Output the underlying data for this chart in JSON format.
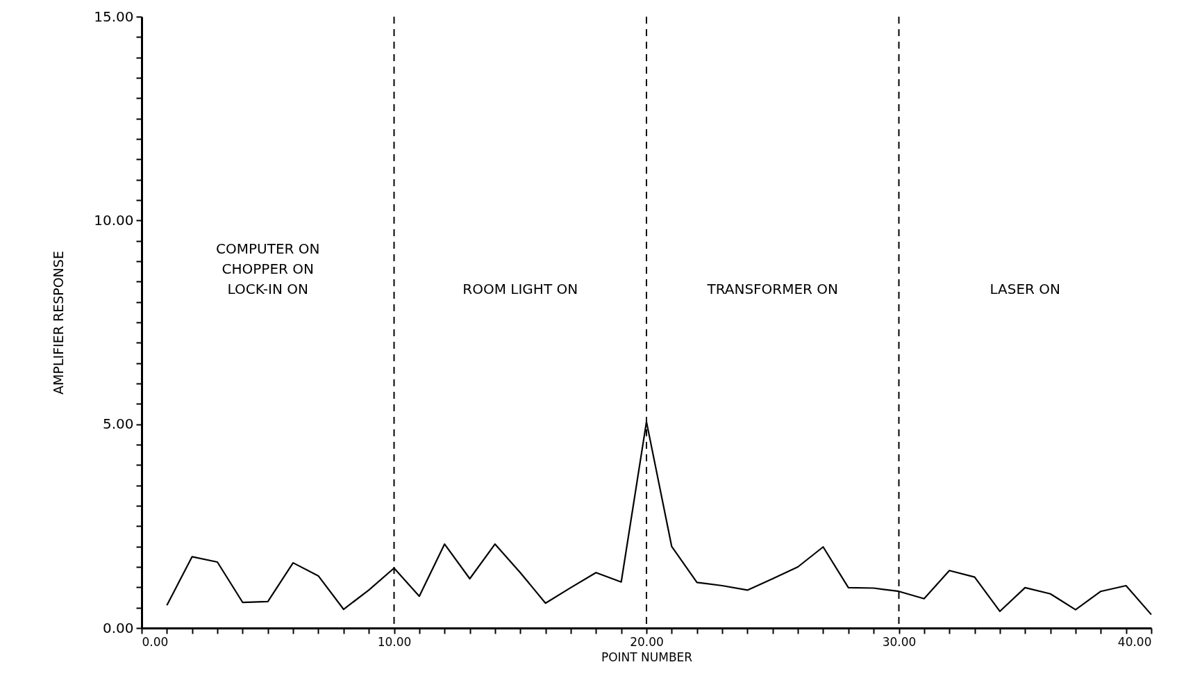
{
  "chart_data": {
    "type": "line",
    "xlabel": "POINT NUMBER",
    "ylabel": "AMPLIFIER RESPONSE",
    "x": [
      1,
      2,
      3,
      4,
      5,
      6,
      7,
      8,
      9,
      10,
      11,
      12,
      13,
      14,
      15,
      16,
      17,
      18,
      19,
      20,
      21,
      22,
      23,
      24,
      25,
      26,
      27,
      28,
      29,
      30,
      31,
      32,
      33,
      34,
      35,
      36,
      37,
      38,
      39,
      40
    ],
    "series": [
      {
        "color": "#000000",
        "values": [
          0.56,
          1.75,
          1.62,
          0.63,
          0.65,
          1.6,
          1.28,
          0.46,
          0.93,
          1.47,
          0.78,
          2.06,
          1.21,
          2.06,
          1.36,
          0.61,
          0.99,
          1.36,
          1.13,
          5.06,
          2.0,
          1.12,
          1.04,
          0.93,
          1.21,
          1.5,
          1.99,
          0.99,
          0.98,
          0.9,
          0.72,
          1.41,
          1.25,
          0.41,
          0.99,
          0.84,
          0.45,
          0.9,
          1.04,
          0.33
        ]
      }
    ],
    "xlim": [
      0,
      40
    ],
    "ylim": [
      0,
      15
    ],
    "xticks": [
      {
        "value": 0,
        "label": "0.00"
      },
      {
        "value": 1,
        "label": null
      },
      {
        "value": 2,
        "label": null
      },
      {
        "value": 3,
        "label": null
      },
      {
        "value": 4,
        "label": null
      },
      {
        "value": 5,
        "label": null
      },
      {
        "value": 6,
        "label": null
      },
      {
        "value": 7,
        "label": null
      },
      {
        "value": 8,
        "label": null
      },
      {
        "value": 9,
        "label": null
      },
      {
        "value": 10,
        "label": "10.00"
      },
      {
        "value": 11,
        "label": null
      },
      {
        "value": 12,
        "label": null
      },
      {
        "value": 13,
        "label": null
      },
      {
        "value": 14,
        "label": null
      },
      {
        "value": 15,
        "label": null
      },
      {
        "value": 16,
        "label": null
      },
      {
        "value": 17,
        "label": null
      },
      {
        "value": 18,
        "label": null
      },
      {
        "value": 19,
        "label": null
      },
      {
        "value": 20,
        "label": "20.00"
      },
      {
        "value": 21,
        "label": null
      },
      {
        "value": 22,
        "label": null
      },
      {
        "value": 23,
        "label": null
      },
      {
        "value": 24,
        "label": null
      },
      {
        "value": 25,
        "label": null
      },
      {
        "value": 26,
        "label": null
      },
      {
        "value": 27,
        "label": null
      },
      {
        "value": 28,
        "label": null
      },
      {
        "value": 29,
        "label": null
      },
      {
        "value": 30,
        "label": "30.00"
      },
      {
        "value": 31,
        "label": null
      },
      {
        "value": 32,
        "label": null
      },
      {
        "value": 33,
        "label": null
      },
      {
        "value": 34,
        "label": null
      },
      {
        "value": 35,
        "label": null
      },
      {
        "value": 36,
        "label": null
      },
      {
        "value": 37,
        "label": null
      },
      {
        "value": 38,
        "label": null
      },
      {
        "value": 39,
        "label": null
      },
      {
        "value": 40,
        "label": "40.00"
      }
    ],
    "yticks": [
      {
        "value": 0,
        "label": "0.00"
      },
      {
        "value": 0.5,
        "label": null
      },
      {
        "value": 1,
        "label": null
      },
      {
        "value": 1.5,
        "label": null
      },
      {
        "value": 2,
        "label": null
      },
      {
        "value": 2.5,
        "label": null
      },
      {
        "value": 3,
        "label": null
      },
      {
        "value": 3.5,
        "label": null
      },
      {
        "value": 4,
        "label": null
      },
      {
        "value": 4.5,
        "label": null
      },
      {
        "value": 5,
        "label": "5.00"
      },
      {
        "value": 5.5,
        "label": null
      },
      {
        "value": 6,
        "label": null
      },
      {
        "value": 6.5,
        "label": null
      },
      {
        "value": 7,
        "label": null
      },
      {
        "value": 7.5,
        "label": null
      },
      {
        "value": 8,
        "label": null
      },
      {
        "value": 8.5,
        "label": null
      },
      {
        "value": 9,
        "label": null
      },
      {
        "value": 9.5,
        "label": null
      },
      {
        "value": 10,
        "label": "10.00"
      },
      {
        "value": 10.5,
        "label": null
      },
      {
        "value": 11,
        "label": null
      },
      {
        "value": 11.5,
        "label": null
      },
      {
        "value": 12,
        "label": null
      },
      {
        "value": 12.5,
        "label": null
      },
      {
        "value": 13,
        "label": null
      },
      {
        "value": 13.5,
        "label": null
      },
      {
        "value": 14,
        "label": null
      },
      {
        "value": 14.5,
        "label": null
      },
      {
        "value": 15,
        "label": "15.00"
      }
    ],
    "ref_lines": [
      {
        "axis": "x",
        "value": 10,
        "line_style": "dashed"
      },
      {
        "axis": "x",
        "value": 20,
        "line_style": "dashed"
      },
      {
        "axis": "x",
        "value": 30,
        "line_style": "dashed"
      }
    ],
    "annotations": [
      "COMPUTER ON\nCHOPPER ON\nLOCK-IN ON",
      "ROOM LIGHT ON",
      "TRANSFORMER ON",
      "LASER ON"
    ],
    "grid": false,
    "marker": "none",
    "line_style": "solid"
  }
}
